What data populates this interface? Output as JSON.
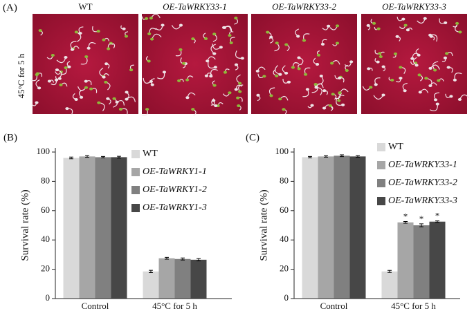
{
  "panel_a": {
    "label": "(A)",
    "side_label": "45°C for 5 h",
    "photos": [
      {
        "title": "WT"
      },
      {
        "title": "OE-TaWRKY33-1"
      },
      {
        "title": "OE-TaWRKY33-2"
      },
      {
        "title": "OE-TaWRKY33-3"
      }
    ]
  },
  "chart_data": [
    {
      "type": "bar",
      "panel_label": "(B)",
      "y_label": "Survival rate (%)",
      "categories": [
        "Control",
        "45°C for 5 h"
      ],
      "series": [
        {
          "name": "WT",
          "color": "#d9d9d9",
          "values": [
            96,
            18.5
          ],
          "errors": [
            0.6,
            0.8
          ]
        },
        {
          "name": "OE-TaWRKY1-1",
          "color": "#a6a6a6",
          "values": [
            97,
            27.5
          ],
          "errors": [
            0.6,
            0.6
          ]
        },
        {
          "name": "OE-TaWRKY1-2",
          "color": "#808080",
          "values": [
            96.5,
            27
          ],
          "errors": [
            0.5,
            0.7
          ]
        },
        {
          "name": "OE-TaWRKY1-3",
          "color": "#474747",
          "values": [
            96.5,
            26.5
          ],
          "errors": [
            0.6,
            0.8
          ]
        }
      ],
      "ylim": [
        0,
        100
      ],
      "yticks": [
        0,
        20,
        40,
        60,
        80,
        100
      ],
      "legend": "upper-right"
    },
    {
      "type": "bar",
      "panel_label": "(C)",
      "y_label": "Survival rate (%)",
      "categories": [
        "Control",
        "45°C for 5 h"
      ],
      "series": [
        {
          "name": "WT",
          "color": "#d9d9d9",
          "values": [
            96.5,
            18.5
          ],
          "errors": [
            0.5,
            0.7
          ]
        },
        {
          "name": "OE-TaWRKY33-1",
          "color": "#a6a6a6",
          "values": [
            97,
            52
          ],
          "errors": [
            0.5,
            0.6
          ]
        },
        {
          "name": "OE-TaWRKY33-2",
          "color": "#808080",
          "values": [
            97.5,
            50
          ],
          "errors": [
            0.6,
            1
          ]
        },
        {
          "name": "OE-TaWRKY33-3",
          "color": "#474747",
          "values": [
            97,
            52.5
          ],
          "errors": [
            0.6,
            0.5
          ]
        }
      ],
      "annotations": [
        {
          "text": "*",
          "series": 1,
          "category": 1
        },
        {
          "text": "*",
          "series": 2,
          "category": 1
        },
        {
          "text": "*",
          "series": 3,
          "category": 1
        }
      ],
      "ylim": [
        0,
        100
      ],
      "yticks": [
        0,
        20,
        40,
        60,
        80,
        100
      ],
      "legend": "upper-right"
    }
  ]
}
